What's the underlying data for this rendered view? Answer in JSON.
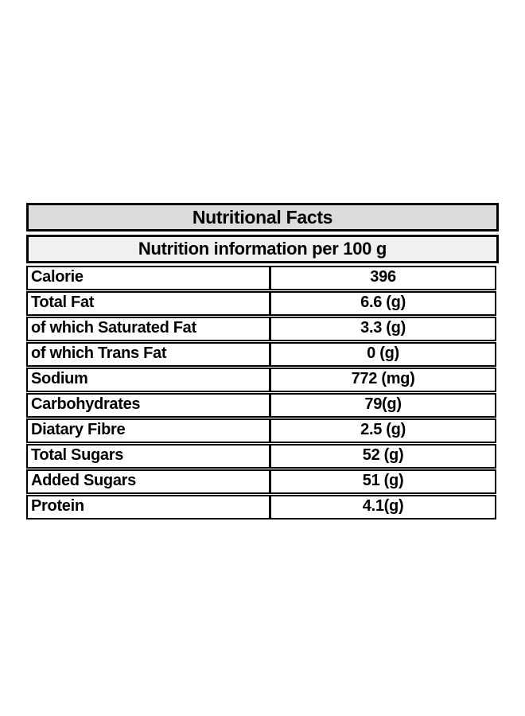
{
  "table": {
    "title": "Nutritional Facts",
    "subtitle": "Nutrition information per 100 g",
    "rows": [
      {
        "label": "Calorie",
        "value": "396"
      },
      {
        "label": "Total Fat",
        "value": "6.6 (g)"
      },
      {
        "label": "of which Saturated Fat",
        "value": "3.3 (g)"
      },
      {
        "label": "of which Trans Fat",
        "value": "0 (g)"
      },
      {
        "label": "Sodium",
        "value": "772 (mg)"
      },
      {
        "label": "Carbohydrates",
        "value": "79(g)"
      },
      {
        "label": "Diatary Fibre",
        "value": "2.5 (g)"
      },
      {
        "label": "Total Sugars",
        "value": "52 (g)"
      },
      {
        "label": "Added Sugars",
        "value": "51 (g)"
      },
      {
        "label": "Protein",
        "value": "4.1(g)"
      }
    ]
  },
  "colors": {
    "border": "#000000",
    "text": "#000000",
    "title_background": "#dcdcdc",
    "subtitle_background": "#f0f0f0",
    "row_background": "#ffffff",
    "page_background": "#ffffff"
  }
}
